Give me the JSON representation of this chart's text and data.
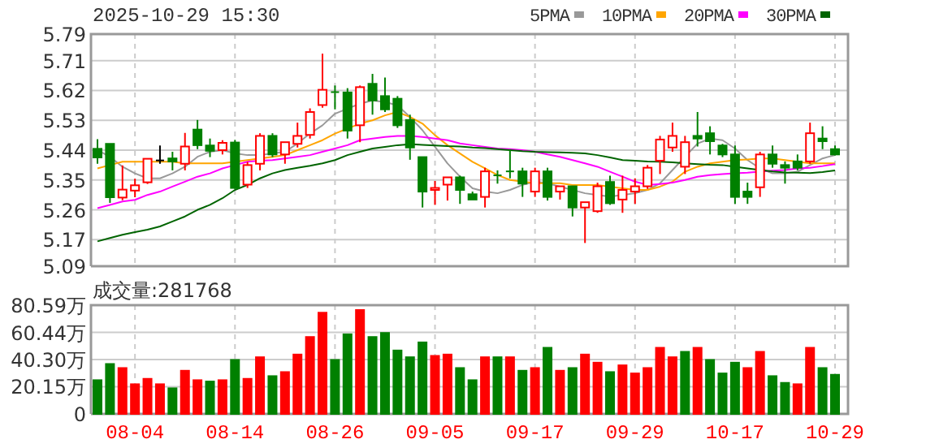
{
  "chart_data": [
    {
      "type": "candlestick",
      "title": "2025-10-29 15:30",
      "categories": [
        null,
        null,
        null,
        null,
        null,
        null,
        null,
        null,
        null,
        null,
        null,
        null,
        null,
        null,
        null,
        null,
        null,
        null,
        null,
        null,
        null,
        null,
        null,
        null,
        null,
        null,
        null,
        null,
        null,
        null,
        null,
        null,
        null,
        null,
        null,
        null,
        null,
        null,
        null,
        null,
        null,
        null,
        null,
        null,
        null,
        null,
        null,
        null,
        null,
        null,
        null,
        null,
        null,
        null,
        null,
        null,
        null,
        null,
        null,
        null
      ],
      "ohlc": [
        [
          5.444,
          5.473,
          5.399,
          5.418
        ],
        [
          5.459,
          5.459,
          5.281,
          5.298
        ],
        [
          5.297,
          5.394,
          5.289,
          5.321
        ],
        [
          5.318,
          5.354,
          5.298,
          5.334
        ],
        [
          5.343,
          5.415,
          5.338,
          5.414
        ],
        [
          5.409,
          5.454,
          5.399,
          5.409
        ],
        [
          5.415,
          5.435,
          5.379,
          5.406
        ],
        [
          5.399,
          5.492,
          5.379,
          5.451
        ],
        [
          5.502,
          5.531,
          5.443,
          5.455
        ],
        [
          5.454,
          5.475,
          5.419,
          5.438
        ],
        [
          5.44,
          5.47,
          5.427,
          5.462
        ],
        [
          5.463,
          5.471,
          5.323,
          5.326
        ],
        [
          5.336,
          5.405,
          5.326,
          5.395
        ],
        [
          5.399,
          5.491,
          5.379,
          5.483
        ],
        [
          5.483,
          5.491,
          5.419,
          5.427
        ],
        [
          5.427,
          5.464,
          5.399,
          5.464
        ],
        [
          5.459,
          5.523,
          5.448,
          5.483
        ],
        [
          5.486,
          5.566,
          5.475,
          5.555
        ],
        [
          5.576,
          5.731,
          5.568,
          5.622
        ],
        [
          5.615,
          5.635,
          5.563,
          5.613
        ],
        [
          5.614,
          5.627,
          5.475,
          5.499
        ],
        [
          5.515,
          5.635,
          5.464,
          5.63
        ],
        [
          5.64,
          5.67,
          5.547,
          5.59
        ],
        [
          5.603,
          5.659,
          5.555,
          5.563
        ],
        [
          5.595,
          5.603,
          5.507,
          5.515
        ],
        [
          5.531,
          5.547,
          5.411,
          5.448
        ],
        [
          5.419,
          5.419,
          5.267,
          5.315
        ],
        [
          5.32,
          5.347,
          5.275,
          5.326
        ],
        [
          5.336,
          5.358,
          5.288,
          5.358
        ],
        [
          5.358,
          5.363,
          5.278,
          5.32
        ],
        [
          5.307,
          5.315,
          5.291,
          5.291
        ],
        [
          5.299,
          5.387,
          5.267,
          5.376
        ],
        [
          5.364,
          5.379,
          5.339,
          5.362
        ],
        [
          5.376,
          5.443,
          5.355,
          5.374
        ],
        [
          5.376,
          5.387,
          5.299,
          5.339
        ],
        [
          5.315,
          5.387,
          5.299,
          5.376
        ],
        [
          5.376,
          5.387,
          5.288,
          5.299
        ],
        [
          5.315,
          5.331,
          5.291,
          5.331
        ],
        [
          5.331,
          5.331,
          5.24,
          5.267
        ],
        [
          5.267,
          5.283,
          5.16,
          5.283
        ],
        [
          5.256,
          5.342,
          5.251,
          5.331
        ],
        [
          5.344,
          5.363,
          5.275,
          5.28
        ],
        [
          5.291,
          5.363,
          5.251,
          5.32
        ],
        [
          5.315,
          5.355,
          5.278,
          5.331
        ],
        [
          5.331,
          5.395,
          5.323,
          5.387
        ],
        [
          5.408,
          5.483,
          5.368,
          5.472
        ],
        [
          5.448,
          5.523,
          5.435,
          5.483
        ],
        [
          5.39,
          5.483,
          5.368,
          5.464
        ],
        [
          5.483,
          5.555,
          5.451,
          5.475
        ],
        [
          5.491,
          5.512,
          5.427,
          5.467
        ],
        [
          5.454,
          5.459,
          5.419,
          5.427
        ],
        [
          5.427,
          5.454,
          5.278,
          5.299
        ],
        [
          5.315,
          5.342,
          5.278,
          5.299
        ],
        [
          5.328,
          5.435,
          5.299,
          5.427
        ],
        [
          5.427,
          5.454,
          5.387,
          5.399
        ],
        [
          5.395,
          5.406,
          5.339,
          5.387
        ],
        [
          5.406,
          5.427,
          5.379,
          5.387
        ],
        [
          5.406,
          5.523,
          5.399,
          5.491
        ],
        [
          5.475,
          5.512,
          5.443,
          5.467
        ],
        [
          5.443,
          5.454,
          5.424,
          5.427
        ]
      ],
      "colors": [
        "#008000",
        "#008000",
        "#ff0000",
        "#ff0000",
        "#ff0000",
        "#000000",
        "#008000",
        "#ff0000",
        "#008000",
        "#008000",
        "#ff0000",
        "#008000",
        "#ff0000",
        "#ff0000",
        "#008000",
        "#ff0000",
        "#ff0000",
        "#ff0000",
        "#ff0000",
        "#008000",
        "#008000",
        "#ff0000",
        "#008000",
        "#008000",
        "#008000",
        "#008000",
        "#008000",
        "#ff0000",
        "#ff0000",
        "#008000",
        "#008000",
        "#ff0000",
        "#008000",
        "#008000",
        "#008000",
        "#ff0000",
        "#008000",
        "#ff0000",
        "#008000",
        "#ff0000",
        "#ff0000",
        "#008000",
        "#ff0000",
        "#ff0000",
        "#ff0000",
        "#ff0000",
        "#ff0000",
        "#ff0000",
        "#008000",
        "#008000",
        "#008000",
        "#008000",
        "#008000",
        "#ff0000",
        "#008000",
        "#008000",
        "#008000",
        "#ff0000",
        "#008000",
        "#008000"
      ],
      "series": [
        {
          "name": "5PMA",
          "type": "line",
          "color": "#999999",
          "values": [
            5.44,
            5.42,
            5.39,
            5.37,
            5.355,
            5.355,
            5.37,
            5.39,
            5.42,
            5.435,
            5.44,
            5.43,
            5.425,
            5.425,
            5.43,
            5.435,
            5.46,
            5.49,
            5.515,
            5.55,
            5.565,
            5.58,
            5.59,
            5.585,
            5.575,
            5.54,
            5.5,
            5.45,
            5.4,
            5.36,
            5.325,
            5.315,
            5.31,
            5.32,
            5.335,
            5.345,
            5.34,
            5.33,
            5.32,
            5.31,
            5.305,
            5.3,
            5.305,
            5.31,
            5.32,
            5.34,
            5.38,
            5.42,
            5.46,
            5.475,
            5.47,
            5.445,
            5.41,
            5.385,
            5.37,
            5.37,
            5.375,
            5.395,
            5.415,
            5.425
          ]
        },
        {
          "name": "10PMA",
          "type": "line",
          "color": "#ffa500",
          "values": [
            5.385,
            5.395,
            5.405,
            5.405,
            5.405,
            5.405,
            5.405,
            5.4,
            5.4,
            5.4,
            5.4,
            5.405,
            5.41,
            5.415,
            5.42,
            5.425,
            5.44,
            5.455,
            5.47,
            5.49,
            5.505,
            5.52,
            5.53,
            5.545,
            5.555,
            5.54,
            5.52,
            5.485,
            5.455,
            5.43,
            5.405,
            5.385,
            5.365,
            5.35,
            5.345,
            5.34,
            5.34,
            5.34,
            5.335,
            5.335,
            5.335,
            5.33,
            5.325,
            5.32,
            5.32,
            5.33,
            5.345,
            5.375,
            5.39,
            5.4,
            5.405,
            5.41,
            5.412,
            5.415,
            5.415,
            5.41,
            5.405,
            5.4,
            5.4,
            5.4
          ]
        },
        {
          "name": "20PMA",
          "type": "line",
          "color": "#ff00ff",
          "values": [
            5.265,
            5.275,
            5.285,
            5.29,
            5.305,
            5.315,
            5.33,
            5.345,
            5.36,
            5.37,
            5.385,
            5.395,
            5.405,
            5.408,
            5.41,
            5.415,
            5.42,
            5.425,
            5.435,
            5.445,
            5.455,
            5.47,
            5.475,
            5.48,
            5.483,
            5.483,
            5.48,
            5.475,
            5.47,
            5.46,
            5.455,
            5.45,
            5.445,
            5.443,
            5.44,
            5.435,
            5.427,
            5.42,
            5.41,
            5.4,
            5.39,
            5.375,
            5.36,
            5.345,
            5.335,
            5.338,
            5.342,
            5.35,
            5.36,
            5.365,
            5.368,
            5.37,
            5.372,
            5.375,
            5.378,
            5.38,
            5.385,
            5.387,
            5.392,
            5.398
          ]
        },
        {
          "name": "30PMA",
          "type": "line",
          "color": "#006400",
          "values": [
            5.165,
            5.175,
            5.185,
            5.193,
            5.2,
            5.21,
            5.225,
            5.24,
            5.26,
            5.275,
            5.295,
            5.32,
            5.335,
            5.355,
            5.37,
            5.38,
            5.387,
            5.393,
            5.4,
            5.41,
            5.425,
            5.435,
            5.445,
            5.45,
            5.455,
            5.458,
            5.456,
            5.454,
            5.452,
            5.451,
            5.448,
            5.446,
            5.443,
            5.44,
            5.437,
            5.435,
            5.434,
            5.433,
            5.432,
            5.43,
            5.425,
            5.418,
            5.41,
            5.408,
            5.406,
            5.405,
            5.403,
            5.4,
            5.398,
            5.396,
            5.395,
            5.39,
            5.385,
            5.38,
            5.376,
            5.373,
            5.372,
            5.371,
            5.374,
            5.379
          ]
        }
      ],
      "ylim": [
        5.09,
        5.79
      ],
      "yticks": [
        5.09,
        5.17,
        5.26,
        5.35,
        5.44,
        5.53,
        5.62,
        5.71,
        5.79
      ],
      "grid": true,
      "legend": "top right",
      "tick_labels": "y"
    },
    {
      "type": "bar",
      "title": "成交量:281768",
      "categories": [
        null,
        null,
        null,
        "08-04",
        null,
        null,
        null,
        null,
        null,
        null,
        null,
        "08-14",
        null,
        null,
        null,
        null,
        null,
        null,
        null,
        "08-26",
        null,
        null,
        null,
        null,
        null,
        null,
        null,
        "09-05",
        null,
        null,
        null,
        null,
        null,
        null,
        null,
        "09-17",
        null,
        null,
        null,
        null,
        null,
        null,
        null,
        "09-29",
        null,
        null,
        null,
        null,
        null,
        null,
        null,
        "10-17",
        null,
        null,
        null,
        null,
        null,
        null,
        null,
        "10-29"
      ],
      "values": [
        25,
        37,
        34,
        22,
        26,
        22,
        19,
        32,
        25,
        24,
        25,
        40,
        26,
        42,
        28,
        31,
        44,
        57,
        75,
        40,
        59,
        77,
        57,
        60,
        47,
        42,
        53,
        43,
        44,
        34,
        25,
        42,
        42,
        42,
        32,
        34,
        49,
        32,
        34,
        44,
        38,
        31,
        36,
        30,
        34,
        49,
        42,
        46,
        49,
        40,
        30,
        38,
        34,
        46,
        28,
        23,
        22,
        49,
        34,
        29
      ],
      "colors": [
        "#008000",
        "#008000",
        "#ff0000",
        "#ff0000",
        "#ff0000",
        "#ff0000",
        "#008000",
        "#ff0000",
        "#ff0000",
        "#008000",
        "#ff0000",
        "#008000",
        "#ff0000",
        "#ff0000",
        "#008000",
        "#ff0000",
        "#ff0000",
        "#ff0000",
        "#ff0000",
        "#008000",
        "#008000",
        "#ff0000",
        "#008000",
        "#008000",
        "#008000",
        "#008000",
        "#008000",
        "#ff0000",
        "#ff0000",
        "#008000",
        "#008000",
        "#ff0000",
        "#008000",
        "#ff0000",
        "#008000",
        "#ff0000",
        "#008000",
        "#ff0000",
        "#008000",
        "#ff0000",
        "#ff0000",
        "#008000",
        "#ff0000",
        "#ff0000",
        "#ff0000",
        "#ff0000",
        "#ff0000",
        "#008000",
        "#ff0000",
        "#008000",
        "#008000",
        "#008000",
        "#ff0000",
        "#ff0000",
        "#008000",
        "#008000",
        "#ff0000",
        "#ff0000",
        "#008000",
        "#008000"
      ],
      "ylim": [
        0,
        80.59
      ],
      "yticks": [
        0,
        {
          "value": 20.15,
          "label": "20.15万"
        },
        {
          "value": 40.3,
          "label": "40.30万"
        },
        {
          "value": 60.44,
          "label": "60.44万"
        },
        {
          "value": 80.59,
          "label": "80.59万"
        }
      ],
      "grid": true
    }
  ]
}
